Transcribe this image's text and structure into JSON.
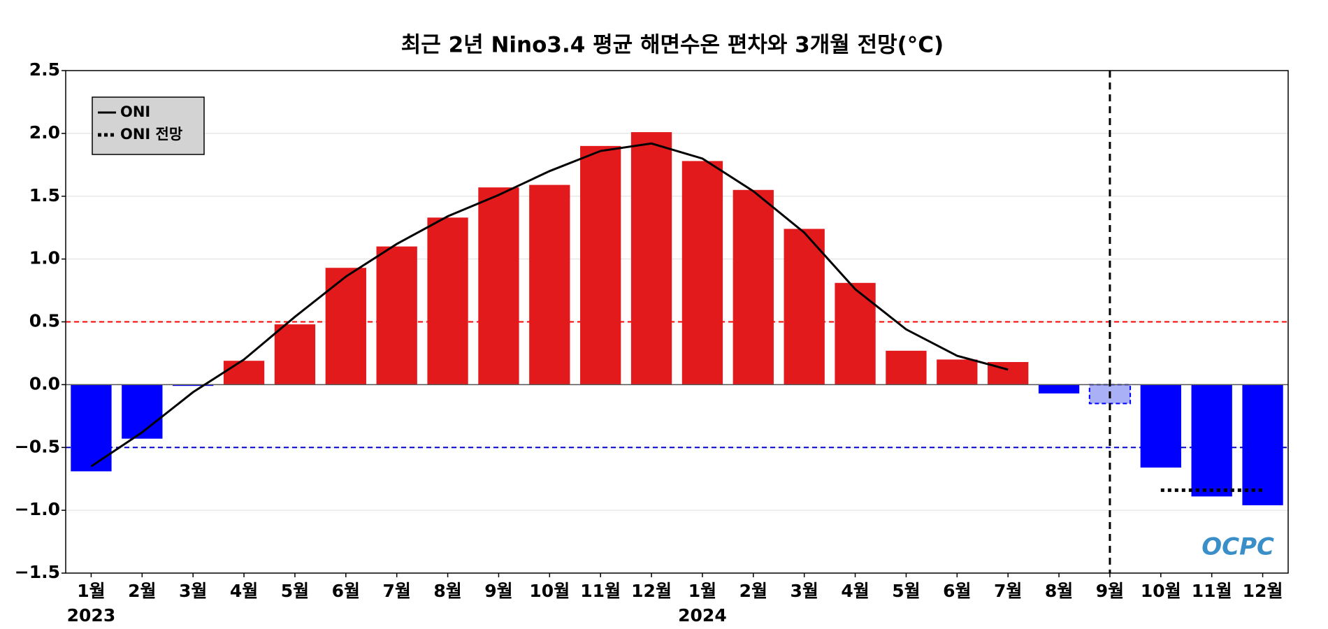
{
  "chart_data": {
    "type": "bar",
    "title": "최근 2년 Nino3.4 평균 해면수온 편차와 3개월 전망(°C)",
    "categories": [
      "1월",
      "2월",
      "3월",
      "4월",
      "5월",
      "6월",
      "7월",
      "8월",
      "9월",
      "10월",
      "11월",
      "12월",
      "1월",
      "2월",
      "3월",
      "4월",
      "5월",
      "6월",
      "7월",
      "8월",
      "9월",
      "10월",
      "11월",
      "12월"
    ],
    "year_labels": [
      {
        "index": 0,
        "label": "2023"
      },
      {
        "index": 12,
        "label": "2024"
      }
    ],
    "bars": {
      "values": [
        -0.69,
        -0.43,
        -0.01,
        0.19,
        0.48,
        0.93,
        1.1,
        1.33,
        1.57,
        1.59,
        1.9,
        2.01,
        1.78,
        1.55,
        1.24,
        0.81,
        0.27,
        0.2,
        0.18,
        -0.07,
        -0.15,
        -0.66,
        -0.89,
        -0.96
      ],
      "colors": [
        "#0000ff",
        "#0000ff",
        "#0000ff",
        "#e31a1c",
        "#e31a1c",
        "#e31a1c",
        "#e31a1c",
        "#e31a1c",
        "#e31a1c",
        "#e31a1c",
        "#e31a1c",
        "#e31a1c",
        "#e31a1c",
        "#e31a1c",
        "#e31a1c",
        "#e31a1c",
        "#e31a1c",
        "#e31a1c",
        "#e31a1c",
        "#0000ff",
        "#aab0f5",
        "#0000ff",
        "#0000ff",
        "#0000ff"
      ]
    },
    "series": [
      {
        "name": "ONI",
        "type": "line",
        "color": "#000000",
        "dash": "solid",
        "values": [
          -0.65,
          -0.38,
          -0.06,
          0.2,
          0.54,
          0.86,
          1.12,
          1.34,
          1.51,
          1.7,
          1.86,
          1.92,
          1.8,
          1.54,
          1.21,
          0.76,
          0.44,
          0.23,
          0.12,
          null,
          null,
          null,
          null,
          null
        ]
      },
      {
        "name": "ONI 전망",
        "type": "line",
        "color": "#000000",
        "dash": "dotted",
        "values": [
          null,
          null,
          null,
          null,
          null,
          null,
          null,
          null,
          null,
          null,
          null,
          null,
          null,
          null,
          null,
          null,
          null,
          null,
          null,
          null,
          null,
          -0.84,
          -0.84,
          -0.84
        ]
      }
    ],
    "reference_lines": [
      {
        "value": 0.5,
        "color": "#ff0000"
      },
      {
        "value": -0.5,
        "color": "#0000cc"
      }
    ],
    "vline": 20,
    "ylim": [
      -1.5,
      2.5
    ],
    "yticks": [
      {
        "value": -1.5,
        "label": "−1.5"
      },
      {
        "value": -1,
        "label": "−1.0"
      },
      {
        "value": -0.5,
        "label": "−0.5"
      },
      {
        "value": 0,
        "label": "0.0"
      },
      0.5,
      {
        "value": 1,
        "label": "1.0"
      },
      1.5,
      {
        "value": 2,
        "label": "2.0"
      },
      2.5
    ],
    "grid": true,
    "legend": "top-left",
    "logo": "OCPC"
  }
}
